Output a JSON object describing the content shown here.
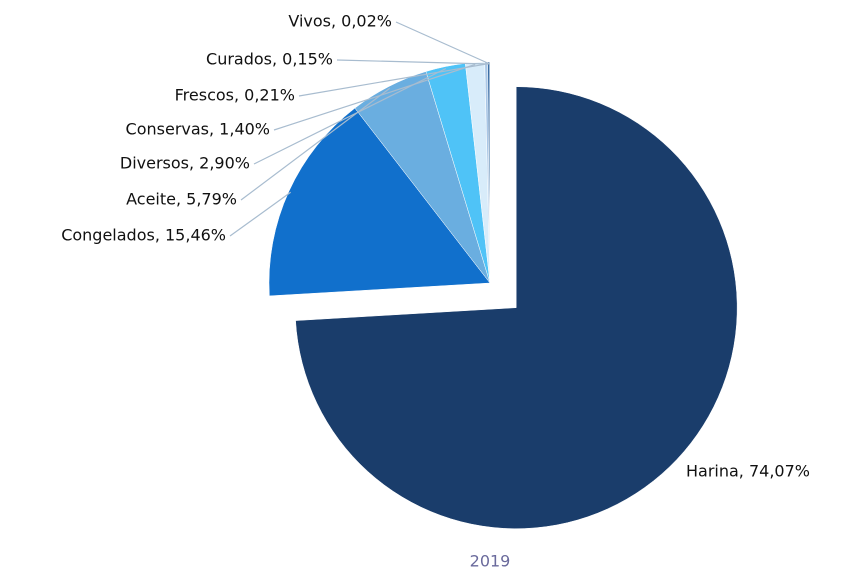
{
  "chart_data": {
    "type": "pie",
    "title": "2019",
    "values": [
      74.07,
      15.46,
      5.79,
      2.9,
      1.4,
      0.21,
      0.15,
      0.02
    ],
    "value_labels": [
      "Harina, 74,07%",
      "Congelados, 15,46%",
      "Aceite, 5,79%",
      "Diversos, 2,90%",
      "Conservas, 1,40%",
      "Frescos, 0,21%",
      "Curados, 0,15%",
      "Vivos, 0,02%"
    ],
    "colors": [
      "#1a3d6b",
      "#1170cc",
      "#6aaee0",
      "#4fc3f7",
      "#d8ecfa",
      "#a9c7e6",
      "#3a6ea5",
      "#1d5a3c"
    ]
  }
}
